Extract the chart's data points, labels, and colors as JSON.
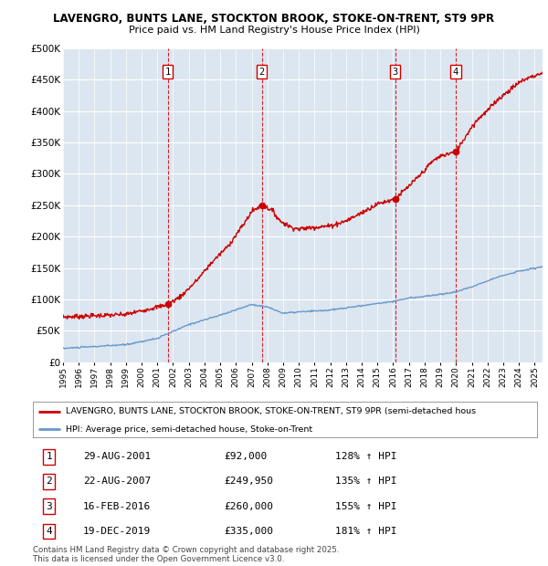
{
  "title1": "LAVENGRO, BUNTS LANE, STOCKTON BROOK, STOKE-ON-TRENT, ST9 9PR",
  "title2": "Price paid vs. HM Land Registry's House Price Index (HPI)",
  "ylim": [
    0,
    500000
  ],
  "yticks": [
    0,
    50000,
    100000,
    150000,
    200000,
    250000,
    300000,
    350000,
    400000,
    450000,
    500000
  ],
  "ytick_labels": [
    "£0",
    "£50K",
    "£100K",
    "£150K",
    "£200K",
    "£250K",
    "£300K",
    "£350K",
    "£400K",
    "£450K",
    "£500K"
  ],
  "xlim_start": 1995.0,
  "xlim_end": 2025.5,
  "legend_label_red": "LAVENGRO, BUNTS LANE, STOCKTON BROOK, STOKE-ON-TRENT, ST9 9PR (semi-detached hous",
  "legend_label_blue": "HPI: Average price, semi-detached house, Stoke-on-Trent",
  "red_color": "#cc0000",
  "blue_color": "#6699cc",
  "background_color": "#dce6f0",
  "grid_color": "#ffffff",
  "sale_dates_num": [
    2001.66,
    2007.64,
    2016.12,
    2019.97
  ],
  "sale_prices": [
    92000,
    249950,
    260000,
    335000
  ],
  "sale_labels": [
    "1",
    "2",
    "3",
    "4"
  ],
  "sale_annotations": [
    [
      "1",
      "29-AUG-2001",
      "£92,000",
      "128% ↑ HPI"
    ],
    [
      "2",
      "22-AUG-2007",
      "£249,950",
      "135% ↑ HPI"
    ],
    [
      "3",
      "16-FEB-2016",
      "£260,000",
      "155% ↑ HPI"
    ],
    [
      "4",
      "19-DEC-2019",
      "£335,000",
      "181% ↑ HPI"
    ]
  ],
  "footer": "Contains HM Land Registry data © Crown copyright and database right 2025.\nThis data is licensed under the Open Government Licence v3.0.",
  "hpi_years": [
    1995,
    1997,
    1999,
    2001,
    2003,
    2005,
    2007,
    2008,
    2009,
    2010,
    2012,
    2014,
    2016,
    2017,
    2018,
    2019,
    2020,
    2021,
    2022,
    2023,
    2024,
    2025.5
  ],
  "hpi_vals": [
    22000,
    25000,
    28000,
    38000,
    60000,
    75000,
    92000,
    88000,
    78000,
    80000,
    83000,
    90000,
    97000,
    102000,
    105000,
    108000,
    112000,
    120000,
    130000,
    138000,
    145000,
    152000
  ],
  "red_years_kp": [
    1995.0,
    1997.0,
    1999.0,
    2001.0,
    2001.66,
    2002.5,
    2003.5,
    2004.5,
    2005.5,
    2006.5,
    2007.0,
    2007.64,
    2008.3,
    2008.8,
    2009.5,
    2010.0,
    2011.0,
    2012.0,
    2013.0,
    2014.0,
    2015.0,
    2016.12,
    2017.0,
    2017.8,
    2018.5,
    2019.0,
    2019.97,
    2020.5,
    2021.0,
    2021.5,
    2022.0,
    2022.5,
    2023.0,
    2023.5,
    2024.0,
    2024.5,
    2025.5
  ],
  "red_vals_kp": [
    72000,
    74000,
    76000,
    88000,
    92000,
    105000,
    130000,
    160000,
    185000,
    220000,
    240000,
    249950,
    242000,
    225000,
    215000,
    212000,
    215000,
    217000,
    225000,
    238000,
    252000,
    260000,
    280000,
    300000,
    320000,
    328000,
    335000,
    355000,
    375000,
    390000,
    400000,
    415000,
    425000,
    435000,
    445000,
    452000,
    460000
  ]
}
